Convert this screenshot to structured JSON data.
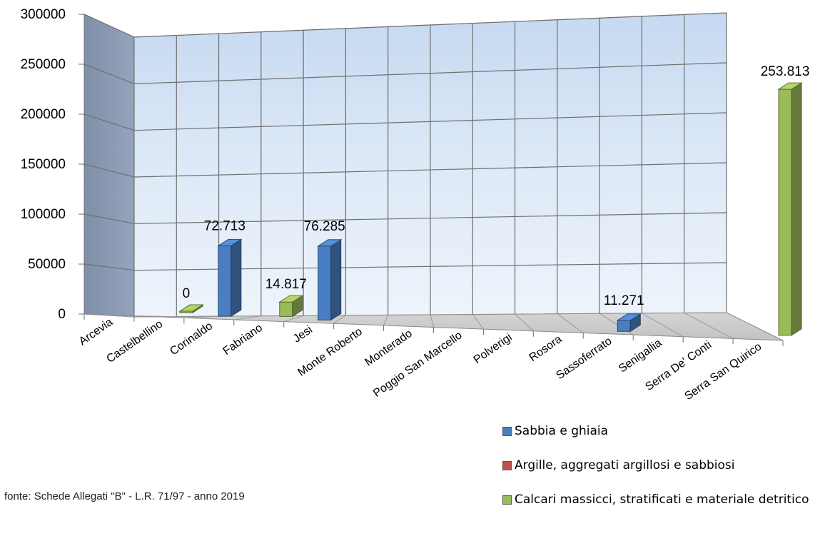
{
  "chart_data": {
    "type": "bar",
    "categories": [
      "Arcevia",
      "Castelbellino",
      "Corinaldo",
      "Fabriano",
      "Jesi",
      "Monte Roberto",
      "Monterado",
      "Poggio San Marcello",
      "Polverigi",
      "Rosora",
      "Sassoferrato",
      "Senigallia",
      "Serra De' Conti",
      "Serra San Quirico"
    ],
    "series": [
      {
        "name": "Sabbia e ghiaia",
        "color": "#4a7ec2",
        "values": [
          null,
          null,
          72713,
          null,
          76285,
          null,
          null,
          null,
          null,
          null,
          11271,
          null,
          null,
          null
        ]
      },
      {
        "name": "Argille, aggregati argillosi e sabbiosi",
        "color": "#c0504d",
        "values": [
          null,
          null,
          null,
          null,
          null,
          null,
          null,
          null,
          null,
          null,
          null,
          null,
          null,
          null
        ]
      },
      {
        "name": "Calcari massicci, stratificati e materiale detritico",
        "color": "#9bbb59",
        "values": [
          null,
          0,
          null,
          14817,
          null,
          null,
          null,
          null,
          null,
          null,
          null,
          null,
          null,
          253813
        ]
      }
    ],
    "data_labels": [
      {
        "category": "Castelbellino",
        "text": "0"
      },
      {
        "category": "Corinaldo",
        "text": "72.713"
      },
      {
        "category": "Fabriano",
        "text": "14.817"
      },
      {
        "category": "Jesi",
        "text": "76.285"
      },
      {
        "category": "Sassoferrato",
        "text": "11.271"
      },
      {
        "category": "Serra San Quirico",
        "text": "253.813"
      }
    ],
    "y_ticks": [
      "0",
      "50000",
      "100000",
      "150000",
      "200000",
      "250000",
      "300000"
    ],
    "ylim": [
      0,
      300000
    ],
    "grid": true,
    "legend_position": "bottom-right"
  },
  "source_note": "fonte: Schede Allegati \"B\" - L.R. 71/97 - anno 2019",
  "legend": [
    {
      "label": "Sabbia e ghiaia",
      "color": "#4a7ec2"
    },
    {
      "label": "Argille, aggregati argillosi e sabbiosi",
      "color": "#c0504d"
    },
    {
      "label": "Calcari massicci, stratificati e materiale detritico",
      "color": "#9bbb59"
    }
  ]
}
